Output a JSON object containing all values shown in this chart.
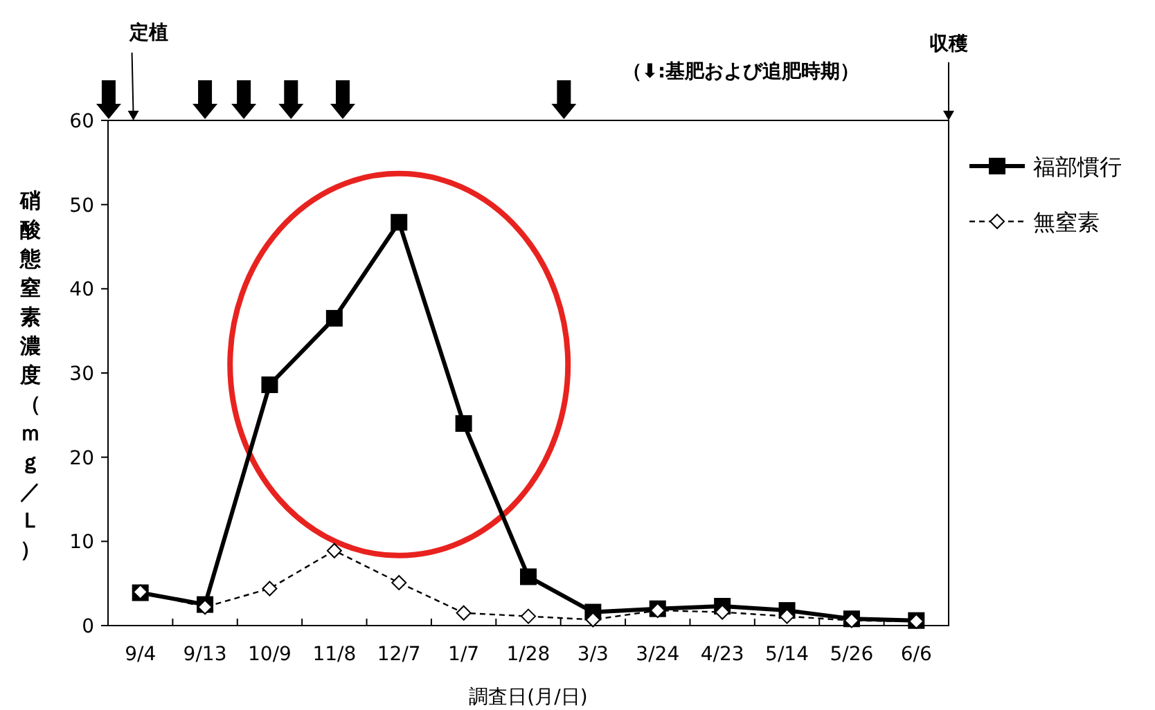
{
  "chart_data": {
    "type": "line",
    "xlabel": "調査日(月/日)",
    "ylabel": "硝酸態窒素濃度（ｍｇ／Ｌ）",
    "categories": [
      "9/4",
      "9/13",
      "10/9",
      "11/8",
      "12/7",
      "1/7",
      "1/28",
      "3/3",
      "3/24",
      "4/23",
      "5/14",
      "5/26",
      "6/6"
    ],
    "series": [
      {
        "name": "福部慣行",
        "color": "#000000",
        "marker": "square",
        "line_style": "solid",
        "values": [
          3.9,
          2.5,
          28.6,
          36.5,
          47.9,
          24.0,
          5.8,
          1.6,
          2.0,
          2.3,
          1.8,
          0.8,
          0.6
        ]
      },
      {
        "name": "無窒素",
        "color": "#000000",
        "marker": "diamond",
        "line_style": "dashed",
        "values": [
          4.0,
          2.2,
          4.4,
          8.9,
          5.1,
          1.5,
          1.1,
          0.7,
          1.8,
          1.6,
          1.1,
          0.6,
          0.5
        ]
      }
    ],
    "ylim": [
      0,
      60
    ],
    "yticks": [
      0,
      10,
      20,
      30,
      40,
      50,
      60
    ],
    "grid": false,
    "legend": "right",
    "annotations": [
      "定植",
      "収穫",
      "（⬇:基肥および追肥時期）"
    ]
  }
}
